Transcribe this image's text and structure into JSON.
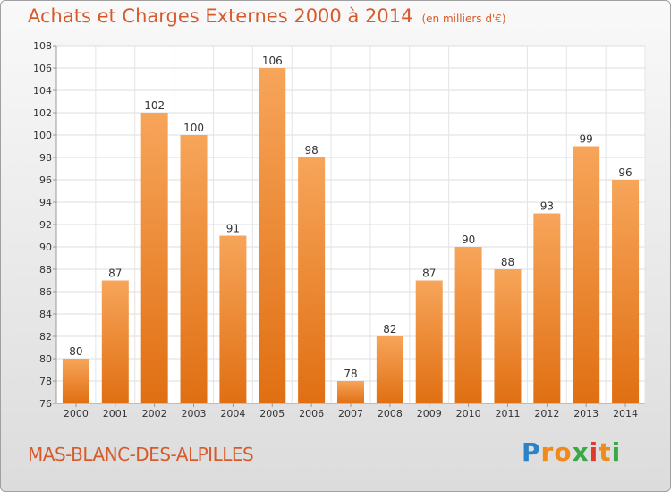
{
  "title": "Achats et Charges Externes 2000 à 2014",
  "subtitle": "(en milliers d'€)",
  "commune": "MAS-BLANC-DES-ALPILLES",
  "logo": {
    "text": "Proxiti",
    "letters": [
      {
        "char": "P",
        "color": "#2a82c9"
      },
      {
        "char": "r",
        "color": "#f08a1c"
      },
      {
        "char": "o",
        "color": "#f08a1c"
      },
      {
        "char": "x",
        "color": "#3aa845"
      },
      {
        "char": "i",
        "color": "#e03a2f"
      },
      {
        "char": "t",
        "color": "#f08a1c"
      },
      {
        "char": "i",
        "color": "#3aa845"
      }
    ]
  },
  "colors": {
    "accent": "#d85a2b",
    "bar_top": "#f7a55a",
    "bar_bottom": "#e06f12"
  },
  "chart_data": {
    "type": "bar",
    "categories": [
      "2000",
      "2001",
      "2002",
      "2003",
      "2004",
      "2005",
      "2006",
      "2007",
      "2008",
      "2009",
      "2010",
      "2011",
      "2012",
      "2013",
      "2014"
    ],
    "values": [
      80,
      87,
      102,
      100,
      91,
      106,
      98,
      78,
      82,
      87,
      90,
      88,
      93,
      99,
      96
    ],
    "ylim": [
      76,
      108
    ],
    "yticks": [
      76,
      78,
      80,
      82,
      84,
      86,
      88,
      90,
      92,
      94,
      96,
      98,
      100,
      102,
      104,
      106,
      108
    ],
    "grid": true,
    "data_labels": true
  }
}
